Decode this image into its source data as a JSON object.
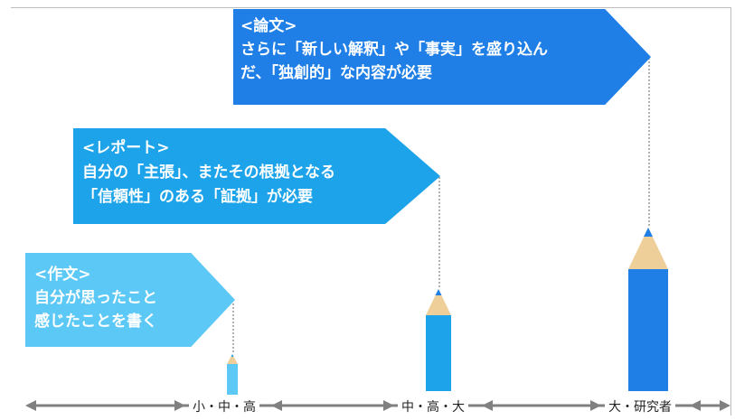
{
  "colors": {
    "essay": "#5bc8f5",
    "report": "#1ca3ea",
    "paper": "#1f7fe6",
    "pencil_wood": "#efcf99",
    "axis": "#808080"
  },
  "flags": {
    "essay": {
      "title": "<作文>",
      "lines": [
        "自分が思ったこと",
        "感じたことを書く"
      ]
    },
    "report": {
      "title": "<レポート>",
      "lines": [
        "自分の「主張」、またその根拠となる",
        "「信頼性」のある「証拠」が必要"
      ]
    },
    "paper": {
      "title": "<論文>",
      "lines": [
        "さらに「新しい解釈」や「事実」を盛り込ん",
        "だ、「独創的」な内容が必要"
      ]
    }
  },
  "axis": {
    "stages": [
      "小・中・高",
      "中・高・大",
      "大・研究者"
    ]
  },
  "pencils": [
    {
      "stage": "小・中・高",
      "level": 1
    },
    {
      "stage": "中・高・大",
      "level": 2
    },
    {
      "stage": "大・研究者",
      "level": 3
    }
  ]
}
